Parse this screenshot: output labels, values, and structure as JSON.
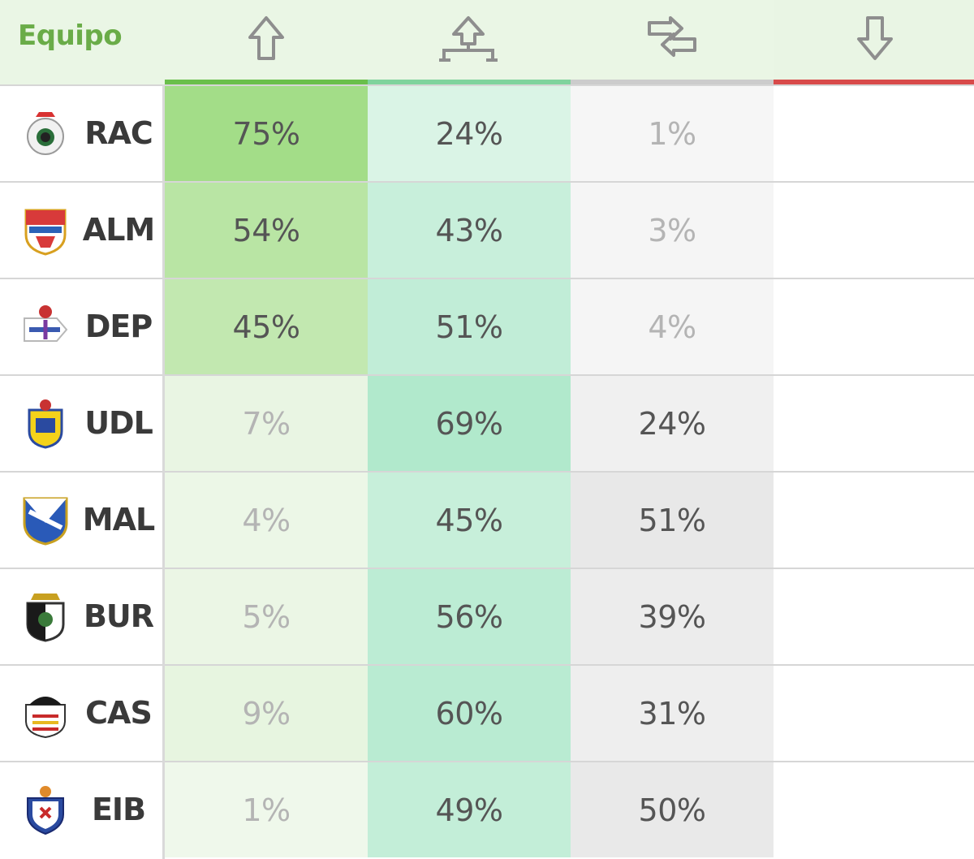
{
  "header": {
    "title": "Equipo",
    "columns": [
      {
        "icon": "arrow-up-icon",
        "bar_color": "#6abf4b"
      },
      {
        "icon": "playoff-arrow-icon",
        "bar_color": "#7fd39d"
      },
      {
        "icon": "swap-arrows-icon",
        "bar_color": "#cccccc"
      },
      {
        "icon": "arrow-down-icon",
        "bar_color": "#d84a4a"
      }
    ]
  },
  "rows": [
    {
      "code": "RAC",
      "crest": "racing-crest-icon",
      "values": [
        "75%",
        "24%",
        "1%",
        ""
      ],
      "shares": [
        75,
        24,
        1,
        0
      ]
    },
    {
      "code": "ALM",
      "crest": "almeria-crest-icon",
      "values": [
        "54%",
        "43%",
        "3%",
        ""
      ],
      "shares": [
        54,
        43,
        3,
        0
      ]
    },
    {
      "code": "DEP",
      "crest": "deportivo-crest-icon",
      "values": [
        "45%",
        "51%",
        "4%",
        ""
      ],
      "shares": [
        45,
        51,
        4,
        0
      ]
    },
    {
      "code": "UDL",
      "crest": "las-palmas-crest-icon",
      "values": [
        "7%",
        "69%",
        "24%",
        ""
      ],
      "shares": [
        7,
        69,
        24,
        0
      ]
    },
    {
      "code": "MAL",
      "crest": "malaga-crest-icon",
      "values": [
        "4%",
        "45%",
        "51%",
        ""
      ],
      "shares": [
        4,
        45,
        51,
        0
      ]
    },
    {
      "code": "BUR",
      "crest": "burgos-crest-icon",
      "values": [
        "5%",
        "56%",
        "39%",
        ""
      ],
      "shares": [
        5,
        56,
        39,
        0
      ]
    },
    {
      "code": "CAS",
      "crest": "castellon-crest-icon",
      "values": [
        "9%",
        "60%",
        "31%",
        ""
      ],
      "shares": [
        9,
        60,
        31,
        0
      ]
    },
    {
      "code": "EIB",
      "crest": "eibar-crest-icon",
      "values": [
        "1%",
        "49%",
        "50%",
        ""
      ],
      "shares": [
        1,
        49,
        50,
        0
      ]
    }
  ]
}
